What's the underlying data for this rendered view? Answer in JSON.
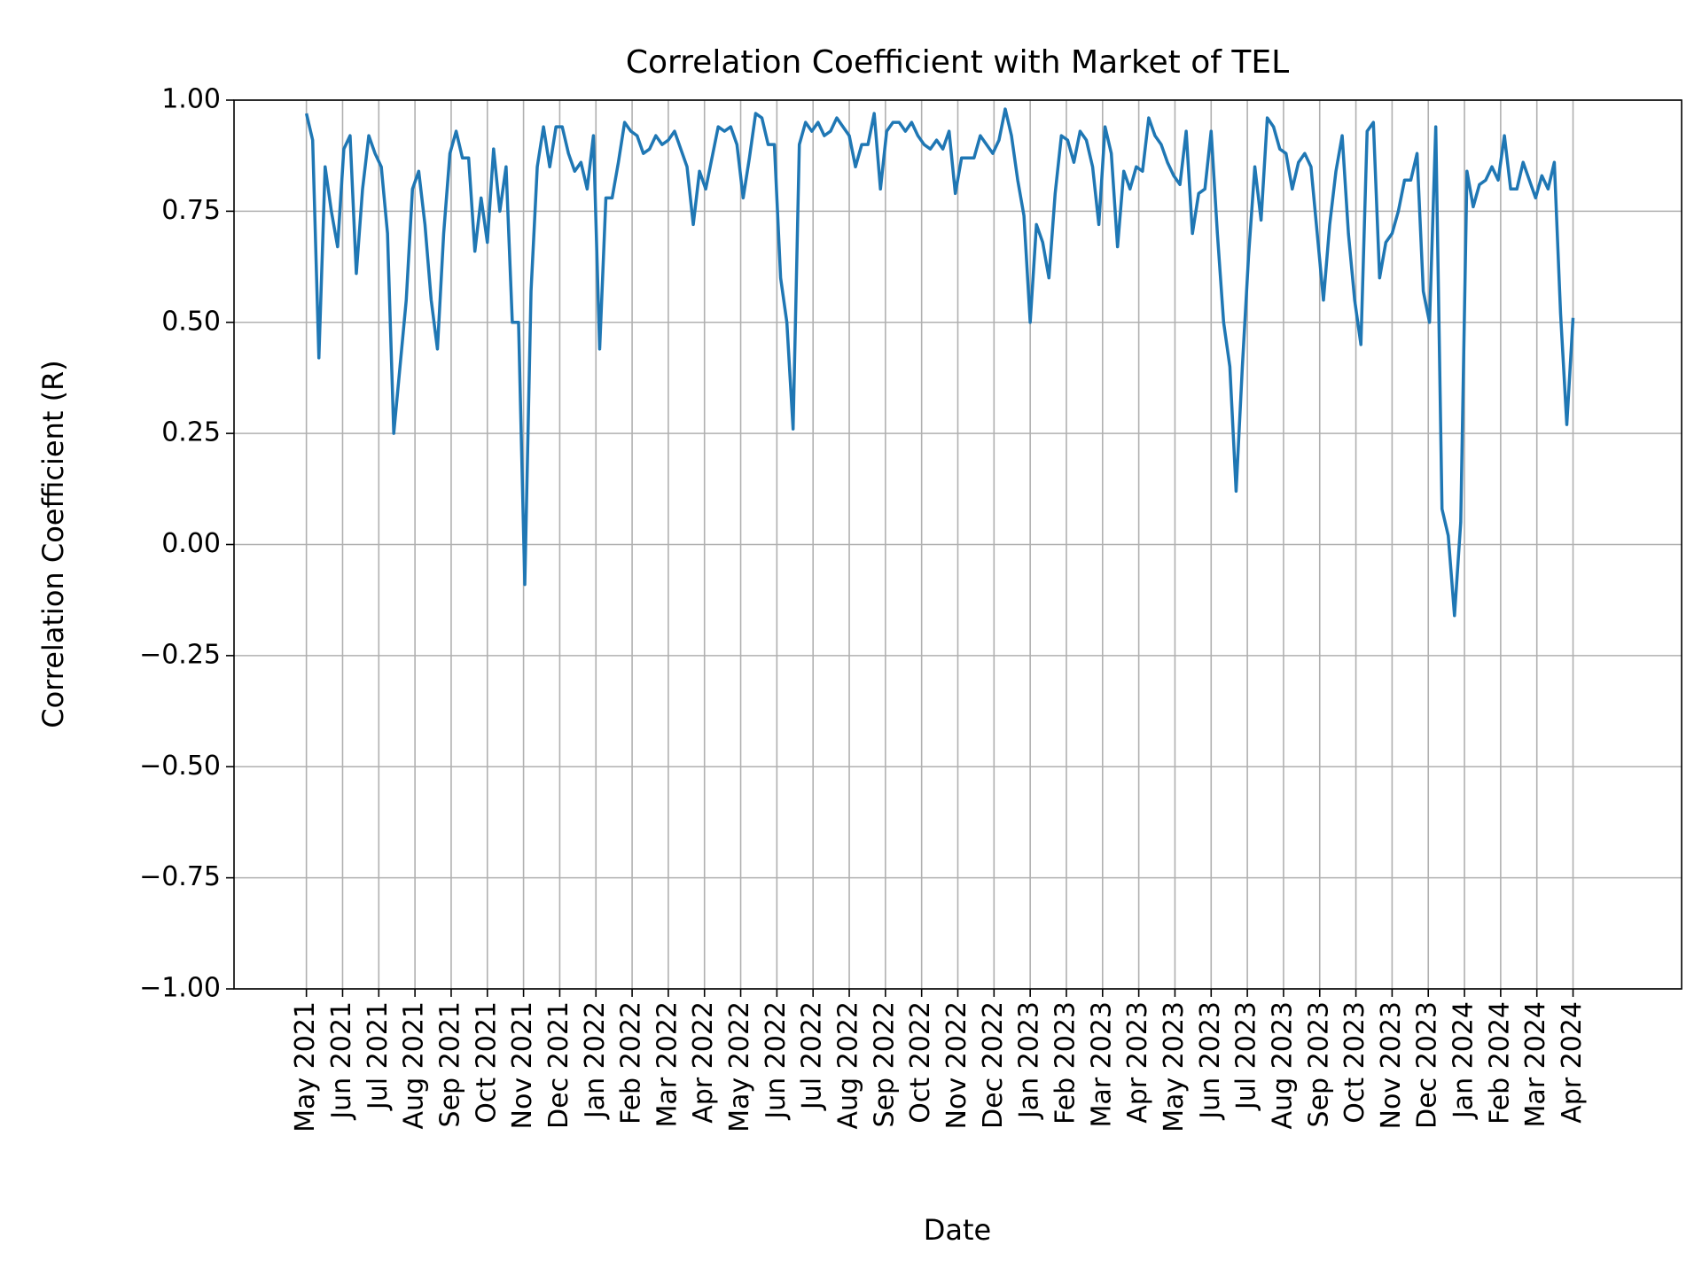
{
  "chart_data": {
    "type": "line",
    "title": "Correlation Coefficient with Market of TEL",
    "xlabel": "Date",
    "ylabel": "Correlation Coefficient (R)",
    "xlim": [
      "2021-03",
      "2024-07"
    ],
    "xticks": [
      {
        "value": "2021-05",
        "label": "May 2021"
      },
      {
        "value": "2021-06",
        "label": "Jun 2021"
      },
      {
        "value": "2021-07",
        "label": "Jul 2021"
      },
      {
        "value": "2021-08",
        "label": "Aug 2021"
      },
      {
        "value": "2021-09",
        "label": "Sep 2021"
      },
      {
        "value": "2021-10",
        "label": "Oct 2021"
      },
      {
        "value": "2021-11",
        "label": "Nov 2021"
      },
      {
        "value": "2021-12",
        "label": "Dec 2021"
      },
      {
        "value": "2022-01",
        "label": "Jan 2022"
      },
      {
        "value": "2022-02",
        "label": "Feb 2022"
      },
      {
        "value": "2022-03",
        "label": "Mar 2022"
      },
      {
        "value": "2022-04",
        "label": "Apr 2022"
      },
      {
        "value": "2022-05",
        "label": "May 2022"
      },
      {
        "value": "2022-06",
        "label": "Jun 2022"
      },
      {
        "value": "2022-07",
        "label": "Jul 2022"
      },
      {
        "value": "2022-08",
        "label": "Aug 2022"
      },
      {
        "value": "2022-09",
        "label": "Sep 2022"
      },
      {
        "value": "2022-10",
        "label": "Oct 2022"
      },
      {
        "value": "2022-11",
        "label": "Nov 2022"
      },
      {
        "value": "2022-12",
        "label": "Dec 2022"
      },
      {
        "value": "2023-01",
        "label": "Jan 2023"
      },
      {
        "value": "2023-02",
        "label": "Feb 2023"
      },
      {
        "value": "2023-03",
        "label": "Mar 2023"
      },
      {
        "value": "2023-04",
        "label": "Apr 2023"
      },
      {
        "value": "2023-05",
        "label": "May 2023"
      },
      {
        "value": "2023-06",
        "label": "Jun 2023"
      },
      {
        "value": "2023-07",
        "label": "Jul 2023"
      },
      {
        "value": "2023-08",
        "label": "Aug 2023"
      },
      {
        "value": "2023-09",
        "label": "Sep 2023"
      },
      {
        "value": "2023-10",
        "label": "Oct 2023"
      },
      {
        "value": "2023-11",
        "label": "Nov 2023"
      },
      {
        "value": "2023-12",
        "label": "Dec 2023"
      },
      {
        "value": "2024-01",
        "label": "Jan 2024"
      },
      {
        "value": "2024-02",
        "label": "Feb 2024"
      },
      {
        "value": "2024-03",
        "label": "Mar 2024"
      },
      {
        "value": "2024-04",
        "label": "Apr 2024"
      }
    ],
    "ylim": [
      -1,
      1
    ],
    "yticks": [
      {
        "value": -1,
        "label": "−1.00"
      },
      {
        "value": -0.75,
        "label": "−0.75"
      },
      {
        "value": -0.5,
        "label": "−0.50"
      },
      {
        "value": -0.25,
        "label": "−0.25"
      },
      {
        "value": 0,
        "label": "0.00"
      },
      {
        "value": 0.25,
        "label": "0.25"
      },
      {
        "value": 0.5,
        "label": "0.50"
      },
      {
        "value": 0.75,
        "label": "0.75"
      },
      {
        "value": 1,
        "label": "1.00"
      }
    ],
    "grid": true,
    "series": [
      {
        "color": "#1f77b4",
        "values": [
          0.97,
          0.91,
          0.42,
          0.85,
          0.75,
          0.67,
          0.89,
          0.92,
          0.61,
          0.8,
          0.92,
          0.88,
          0.85,
          0.7,
          0.25,
          0.4,
          0.55,
          0.8,
          0.84,
          0.72,
          0.55,
          0.44,
          0.7,
          0.88,
          0.93,
          0.87,
          0.87,
          0.66,
          0.78,
          0.68,
          0.89,
          0.75,
          0.85,
          0.5,
          0.5,
          -0.09,
          0.57,
          0.85,
          0.94,
          0.85,
          0.94,
          0.94,
          0.88,
          0.84,
          0.86,
          0.8,
          0.92,
          0.44,
          0.78,
          0.78,
          0.86,
          0.95,
          0.93,
          0.92,
          0.88,
          0.89,
          0.92,
          0.9,
          0.91,
          0.93,
          0.89,
          0.85,
          0.72,
          0.84,
          0.8,
          0.87,
          0.94,
          0.93,
          0.94,
          0.9,
          0.78,
          0.87,
          0.97,
          0.96,
          0.9,
          0.9,
          0.6,
          0.5,
          0.26,
          0.9,
          0.95,
          0.93,
          0.95,
          0.92,
          0.93,
          0.96,
          0.94,
          0.92,
          0.85,
          0.9,
          0.9,
          0.97,
          0.8,
          0.93,
          0.95,
          0.95,
          0.93,
          0.95,
          0.92,
          0.9,
          0.89,
          0.91,
          0.89,
          0.93,
          0.79,
          0.87,
          0.87,
          0.87,
          0.92,
          0.9,
          0.88,
          0.91,
          0.98,
          0.92,
          0.82,
          0.74,
          0.5,
          0.72,
          0.68,
          0.6,
          0.79,
          0.92,
          0.91,
          0.86,
          0.93,
          0.91,
          0.85,
          0.72,
          0.94,
          0.88,
          0.67,
          0.84,
          0.8,
          0.85,
          0.84,
          0.96,
          0.92,
          0.9,
          0.86,
          0.83,
          0.81,
          0.93,
          0.7,
          0.79,
          0.8,
          0.93,
          0.7,
          0.5,
          0.4,
          0.12,
          0.4,
          0.65,
          0.85,
          0.73,
          0.96,
          0.94,
          0.89,
          0.88,
          0.8,
          0.86,
          0.88,
          0.85,
          0.7,
          0.55,
          0.72,
          0.84,
          0.92,
          0.7,
          0.55,
          0.45,
          0.93,
          0.95,
          0.6,
          0.68,
          0.7,
          0.75,
          0.82,
          0.82,
          0.88,
          0.57,
          0.5,
          0.94,
          0.08,
          0.02,
          -0.16,
          0.05,
          0.84,
          0.76,
          0.81,
          0.82,
          0.85,
          0.82,
          0.92,
          0.8,
          0.8,
          0.86,
          0.82,
          0.78,
          0.83,
          0.8,
          0.86,
          0.52,
          0.27,
          0.51
        ]
      }
    ]
  }
}
